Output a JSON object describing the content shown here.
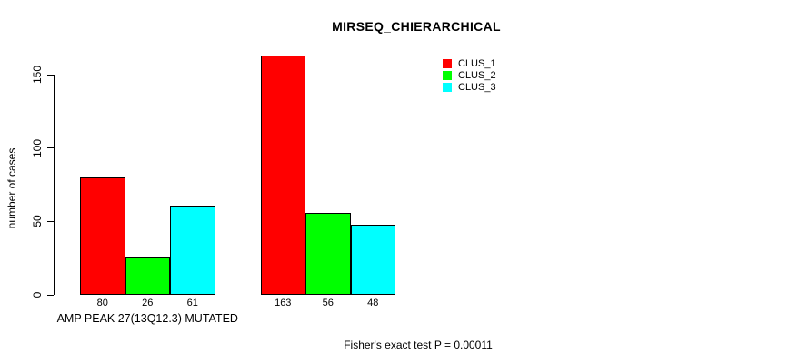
{
  "chart_data": {
    "type": "bar",
    "title": "MIRSEQ_CHIERARCHICAL",
    "ylabel": "number of cases",
    "xlabel": "",
    "ylim": [
      0,
      150
    ],
    "yticks": [
      0,
      50,
      100,
      150
    ],
    "grid": false,
    "legend_position": "top-right",
    "categories": [
      "AMP PEAK 27(13Q12.3) MUTATED",
      ""
    ],
    "series": [
      {
        "name": "CLUS_1",
        "color": "#ff0000",
        "values": [
          80,
          163
        ]
      },
      {
        "name": "CLUS_2",
        "color": "#00ff00",
        "values": [
          26,
          56
        ]
      },
      {
        "name": "CLUS_3",
        "color": "#00ffff",
        "values": [
          61,
          48
        ]
      }
    ],
    "bar_value_labels": [
      [
        "80",
        "26",
        "61"
      ],
      [
        "163",
        "56",
        "48"
      ]
    ],
    "annotation": "Fisher's exact test P = 0.00011"
  },
  "colors": {
    "axis": "#000000",
    "background": "#ffffff",
    "text": "#000000"
  }
}
